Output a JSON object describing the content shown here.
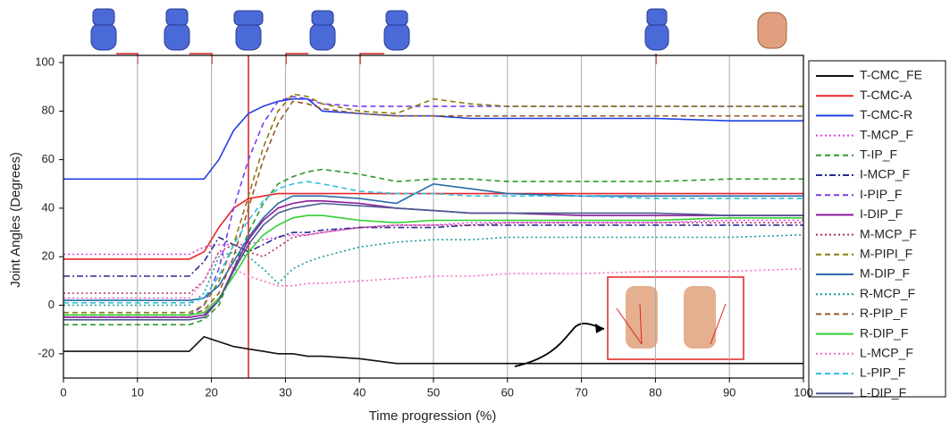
{
  "chart_data": {
    "type": "line",
    "x_label": "Time progression (%)",
    "y_label": "Joint Angles (Degrees)",
    "x": [
      0,
      5,
      10,
      15,
      17,
      19,
      21,
      23,
      25,
      27,
      29,
      31,
      33,
      35,
      40,
      45,
      50,
      55,
      60,
      70,
      80,
      90,
      100
    ],
    "xlim": [
      0,
      100
    ],
    "xticks": [
      0,
      10,
      20,
      30,
      40,
      50,
      60,
      70,
      80,
      90,
      100
    ],
    "ylim": [
      -30,
      100
    ],
    "yticks": [
      -20,
      0,
      20,
      40,
      60,
      80,
      100
    ],
    "grid": "x",
    "highlight_x": 25,
    "highlight_color": "#d42020",
    "legend": "right",
    "series": [
      {
        "name": "T-CMC_FE",
        "color": "#111111",
        "dash": "solid",
        "values": [
          -19,
          -19,
          -19,
          -19,
          -19,
          -13,
          -15,
          -17,
          -18,
          -19,
          -20,
          -20,
          -21,
          -21,
          -22,
          -24,
          -24,
          -24,
          -24,
          -24,
          -24,
          -24,
          -24
        ]
      },
      {
        "name": "T-CMC-A",
        "color": "#e8262a",
        "dash": "solid",
        "values": [
          19,
          19,
          19,
          19,
          19,
          22,
          32,
          40,
          44,
          45,
          46,
          46,
          46,
          46,
          46,
          46,
          46,
          46,
          46,
          46,
          46,
          46,
          46
        ]
      },
      {
        "name": "T-CMC-R",
        "color": "#1f3fe0",
        "dash": "solid",
        "values": [
          52,
          52,
          52,
          52,
          52,
          52,
          60,
          72,
          79,
          82,
          84,
          85,
          85,
          80,
          79,
          78,
          78,
          77,
          77,
          77,
          77,
          76,
          76
        ]
      },
      {
        "name": "T-MCP_F",
        "color": "#e040e0",
        "dash": "dotted",
        "values": [
          21,
          21,
          21,
          21,
          21,
          24,
          25,
          25,
          25,
          27,
          28,
          29,
          29,
          30,
          32,
          33,
          33,
          34,
          34,
          34,
          34,
          35,
          35
        ]
      },
      {
        "name": "T-IP_F",
        "color": "#2a9a2a",
        "dash": "dashed",
        "values": [
          -8,
          -8,
          -8,
          -8,
          -8,
          -6,
          0,
          15,
          30,
          42,
          50,
          53,
          55,
          56,
          54,
          51,
          52,
          52,
          51,
          51,
          51,
          52,
          52
        ]
      },
      {
        "name": "I-MCP_F",
        "color": "#2a2a90",
        "dash": "dashdot",
        "values": [
          12,
          12,
          12,
          12,
          12,
          18,
          28,
          25,
          22,
          25,
          28,
          30,
          30,
          31,
          32,
          32,
          32,
          33,
          33,
          33,
          33,
          33,
          33
        ]
      },
      {
        "name": "I-PIP_F",
        "color": "#7a3af0",
        "dash": "dashed",
        "values": [
          -4,
          -4,
          -4,
          -4,
          -4,
          0,
          15,
          40,
          60,
          75,
          84,
          86,
          85,
          83,
          82,
          82,
          82,
          82,
          82,
          82,
          82,
          82,
          82
        ]
      },
      {
        "name": "I-DIP_F",
        "color": "#8a1a9a",
        "dash": "solid",
        "values": [
          -5,
          -5,
          -5,
          -5,
          -5,
          -4,
          2,
          15,
          27,
          35,
          40,
          42,
          43,
          43,
          42,
          40,
          39,
          38,
          38,
          37,
          37,
          37,
          37
        ]
      },
      {
        "name": "M-MCP_F",
        "color": "#b03070",
        "dash": "dotted",
        "values": [
          5,
          5,
          5,
          5,
          5,
          10,
          22,
          25,
          22,
          20,
          24,
          28,
          29,
          30,
          32,
          33,
          33,
          33,
          34,
          34,
          34,
          34,
          34
        ]
      },
      {
        "name": "M-PIPI_F",
        "color": "#8a7a10",
        "dash": "dashed",
        "values": [
          -3,
          -3,
          -3,
          -3,
          -3,
          0,
          10,
          25,
          45,
          65,
          80,
          87,
          86,
          83,
          80,
          79,
          85,
          83,
          82,
          82,
          82,
          82,
          82
        ]
      },
      {
        "name": "M-DIP_F",
        "color": "#2a6aa8",
        "dash": "solid",
        "values": [
          2,
          2,
          2,
          2,
          2,
          3,
          8,
          18,
          28,
          36,
          42,
          45,
          45,
          45,
          44,
          42,
          50,
          48,
          46,
          45,
          45,
          45,
          45
        ]
      },
      {
        "name": "R-MCP_F",
        "color": "#1a9a9a",
        "dash": "dotted",
        "values": [
          0,
          0,
          0,
          0,
          0,
          5,
          20,
          22,
          20,
          15,
          9,
          15,
          18,
          20,
          24,
          26,
          27,
          27,
          28,
          28,
          28,
          28,
          29
        ]
      },
      {
        "name": "R-PIP_F",
        "color": "#9a5a2a",
        "dash": "dashed",
        "values": [
          -4,
          -4,
          -4,
          -4,
          -4,
          -2,
          5,
          20,
          40,
          60,
          75,
          84,
          83,
          81,
          79,
          78,
          78,
          78,
          78,
          78,
          78,
          78,
          78
        ]
      },
      {
        "name": "R-DIP_F",
        "color": "#30d030",
        "dash": "solid",
        "values": [
          -4,
          -4,
          -4,
          -4,
          -4,
          -3,
          3,
          12,
          22,
          29,
          33,
          36,
          37,
          37,
          35,
          34,
          35,
          35,
          35,
          35,
          35,
          36,
          36
        ]
      },
      {
        "name": "L-MCP_F",
        "color": "#f070c0",
        "dash": "dotted",
        "values": [
          3,
          3,
          3,
          3,
          3,
          10,
          22,
          15,
          12,
          10,
          8,
          8,
          9,
          9,
          10,
          11,
          12,
          12,
          13,
          13,
          14,
          14,
          15
        ]
      },
      {
        "name": "L-PIP_F",
        "color": "#30c0e0",
        "dash": "dashed",
        "values": [
          1,
          1,
          1,
          1,
          1,
          3,
          12,
          25,
          35,
          43,
          48,
          50,
          51,
          50,
          47,
          46,
          46,
          45,
          45,
          45,
          44,
          44,
          44
        ]
      },
      {
        "name": "L-DIP_F",
        "color": "#4a5a90",
        "dash": "solid",
        "values": [
          -6,
          -6,
          -6,
          -6,
          -6,
          -5,
          2,
          14,
          25,
          33,
          38,
          40,
          41,
          42,
          41,
          40,
          39,
          38,
          38,
          38,
          38,
          37,
          37
        ]
      }
    ]
  }
}
